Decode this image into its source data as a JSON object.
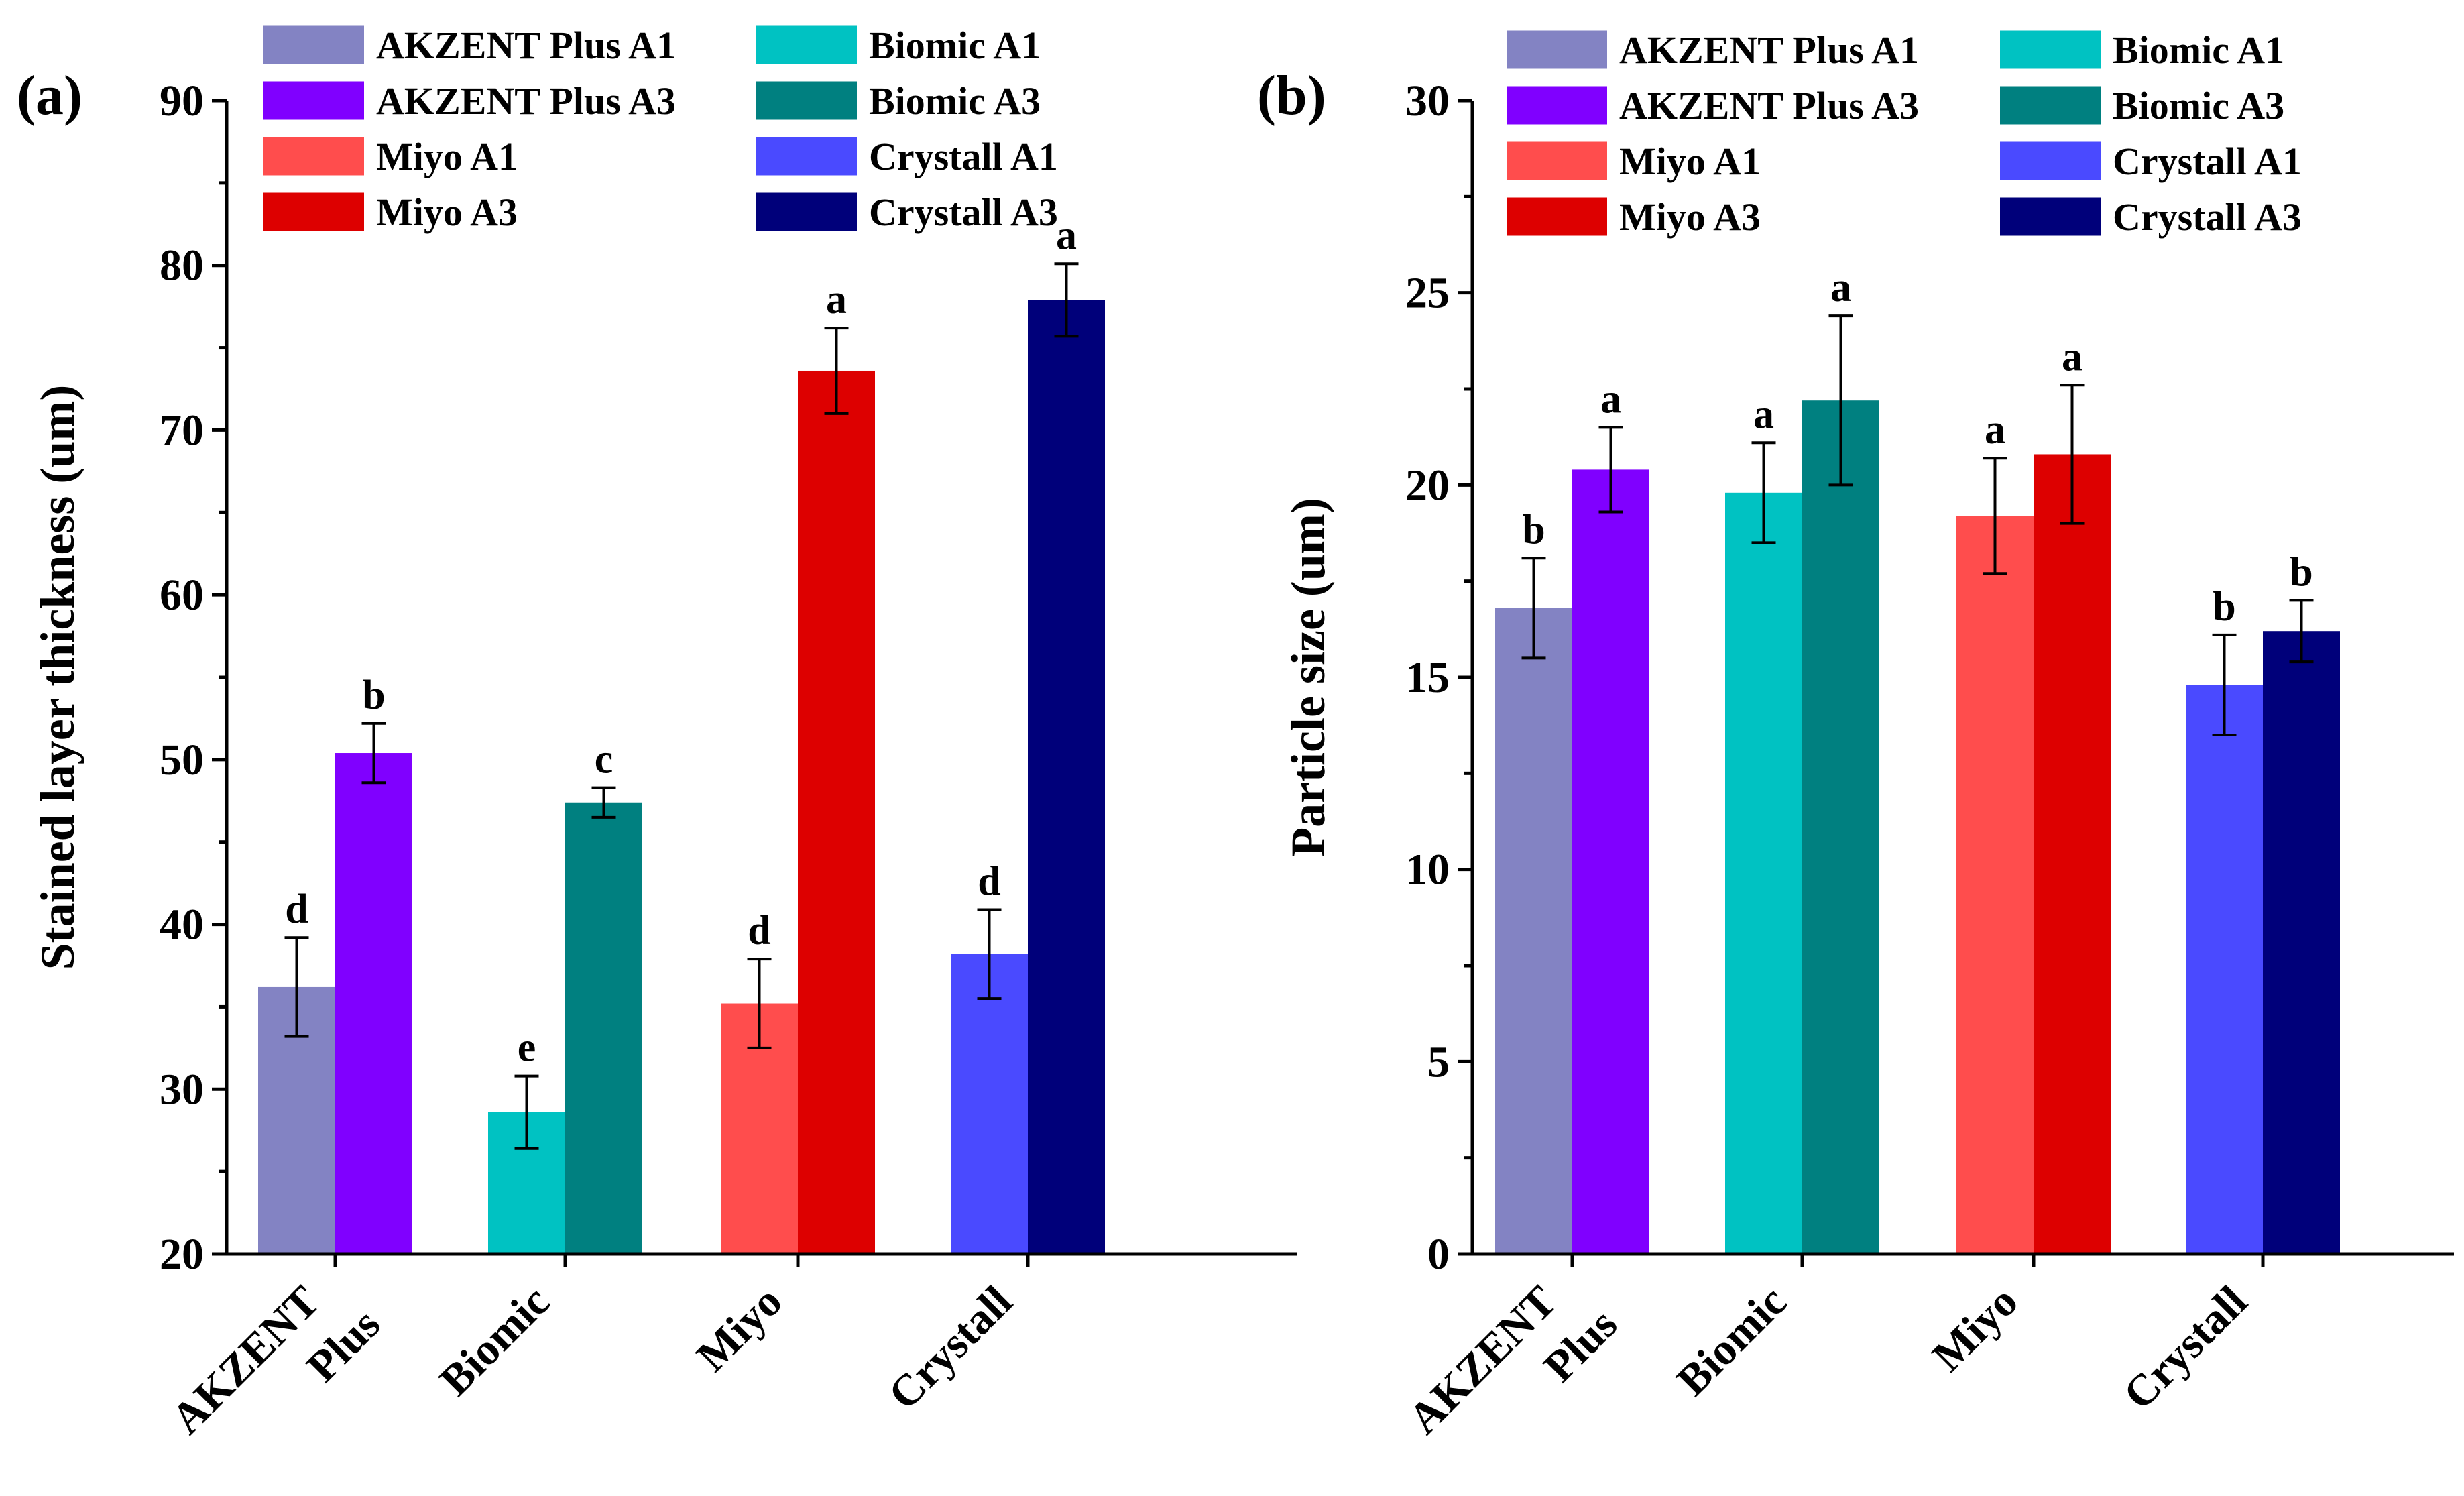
{
  "chart_data": [
    {
      "type": "bar",
      "panel_label": "(a)",
      "title": "",
      "xlabel": "",
      "ylabel": "Stained layer thickness (um)",
      "ylim": [
        20,
        90
      ],
      "yticks": [
        20,
        30,
        40,
        50,
        60,
        70,
        80,
        90
      ],
      "categories": [
        [
          "AKZENT",
          "Plus"
        ],
        [
          "Biomic"
        ],
        [
          "Miyo"
        ],
        [
          "Crystall"
        ]
      ],
      "series": [
        {
          "name": "AKZENT Plus A1",
          "color": "#8383c3",
          "category": 0,
          "value": 36.2,
          "error": 3.0,
          "label": "d"
        },
        {
          "name": "AKZENT Plus A3",
          "color": "#8000ff",
          "category": 0,
          "value": 50.4,
          "error": 1.8,
          "label": "b"
        },
        {
          "name": "Biomic A1",
          "color": "#00c2c2",
          "category": 1,
          "value": 28.6,
          "error": 2.2,
          "label": "e"
        },
        {
          "name": "Biomic A3",
          "color": "#008080",
          "category": 1,
          "value": 47.4,
          "error": 0.9,
          "label": "c"
        },
        {
          "name": "Miyo A1",
          "color": "#ff4d4d",
          "category": 2,
          "value": 35.2,
          "error": 2.7,
          "label": "d"
        },
        {
          "name": "Miyo A3",
          "color": "#dd0000",
          "category": 2,
          "value": 73.6,
          "error": 2.6,
          "label": "a"
        },
        {
          "name": "Crystall A1",
          "color": "#4a4aff",
          "category": 3,
          "value": 38.2,
          "error": 2.7,
          "label": "d"
        },
        {
          "name": "Crystall A3",
          "color": "#00007a",
          "category": 3,
          "value": 77.9,
          "error": 2.2,
          "label": "a"
        }
      ],
      "legend": {
        "placement": "top",
        "columns": [
          [
            "AKZENT Plus A1",
            "AKZENT Plus A3",
            "Miyo A1",
            "Miyo A3"
          ],
          [
            "Biomic A1",
            "Biomic A3",
            "Crystall A1",
            "Crystall A3"
          ]
        ]
      }
    },
    {
      "type": "bar",
      "panel_label": "(b)",
      "title": "",
      "xlabel": "",
      "ylabel": "Particle size (um)",
      "ylim": [
        0,
        30
      ],
      "yticks": [
        0,
        5,
        10,
        15,
        20,
        25,
        30
      ],
      "categories": [
        [
          "AKZENT",
          "Plus"
        ],
        [
          "Biomic"
        ],
        [
          "Miyo"
        ],
        [
          "Crystall"
        ]
      ],
      "series": [
        {
          "name": "AKZENT Plus A1",
          "color": "#8383c3",
          "category": 0,
          "value": 16.8,
          "error": 1.3,
          "label": "b"
        },
        {
          "name": "AKZENT Plus A3",
          "color": "#8000ff",
          "category": 0,
          "value": 20.4,
          "error": 1.1,
          "label": "a"
        },
        {
          "name": "Biomic A1",
          "color": "#00c2c2",
          "category": 1,
          "value": 19.8,
          "error": 1.3,
          "label": "a"
        },
        {
          "name": "Biomic A3",
          "color": "#008080",
          "category": 1,
          "value": 22.2,
          "error": 2.2,
          "label": "a"
        },
        {
          "name": "Miyo A1",
          "color": "#ff4d4d",
          "category": 2,
          "value": 19.2,
          "error": 1.5,
          "label": "a"
        },
        {
          "name": "Miyo A3",
          "color": "#dd0000",
          "category": 2,
          "value": 20.8,
          "error": 1.8,
          "label": "a"
        },
        {
          "name": "Crystall A1",
          "color": "#4a4aff",
          "category": 3,
          "value": 14.8,
          "error": 1.3,
          "label": "b"
        },
        {
          "name": "Crystall A3",
          "color": "#00007a",
          "category": 3,
          "value": 16.2,
          "error": 0.8,
          "label": "b"
        }
      ],
      "legend": {
        "placement": "top",
        "columns": [
          [
            "AKZENT Plus A1",
            "AKZENT Plus A3",
            "Miyo A1",
            "Miyo A3"
          ],
          [
            "Biomic A1",
            "Biomic A3",
            "Crystall A1",
            "Crystall A3"
          ]
        ]
      }
    }
  ]
}
